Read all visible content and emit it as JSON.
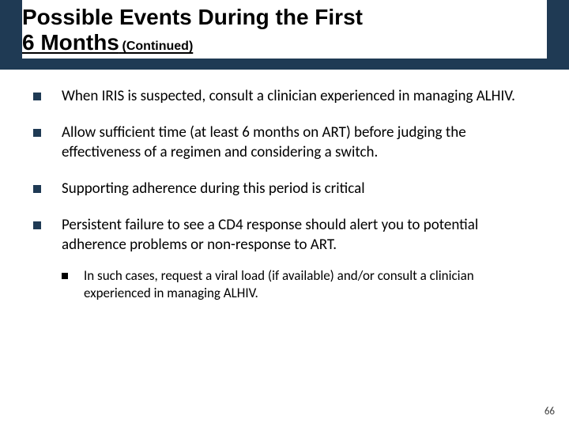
{
  "header": {
    "band_color": "#1f3a54",
    "title_line1": "Possible Events During the First",
    "title_line2": "6 Months",
    "title_sub": "(Continued)",
    "title_fontsize": 28,
    "sub_fontsize": 16,
    "title_color": "#000000",
    "title_bg": "#ffffff"
  },
  "bullets": [
    {
      "text": "When IRIS is suspected, consult a clinician experienced in managing ALHIV."
    },
    {
      "text": "Allow sufficient time (at least 6 months on ART) before judging the effectiveness of a regimen and considering a switch."
    },
    {
      "text": "Supporting adherence during this period is critical"
    },
    {
      "text": "Persistent failure to see a CD4 response should alert you to potential adherence problems or non-response to ART."
    }
  ],
  "sub_bullets": [
    {
      "text": "In such cases, request a viral load (if available) and/or consult a clinician experienced in managing ALHIV."
    }
  ],
  "bullet_marker_color": "#1f3a54",
  "sub_marker_color": "#000000",
  "body_fontsize": 19,
  "sub_fontsize_body": 17,
  "page_number": "66",
  "background_color": "#ffffff"
}
